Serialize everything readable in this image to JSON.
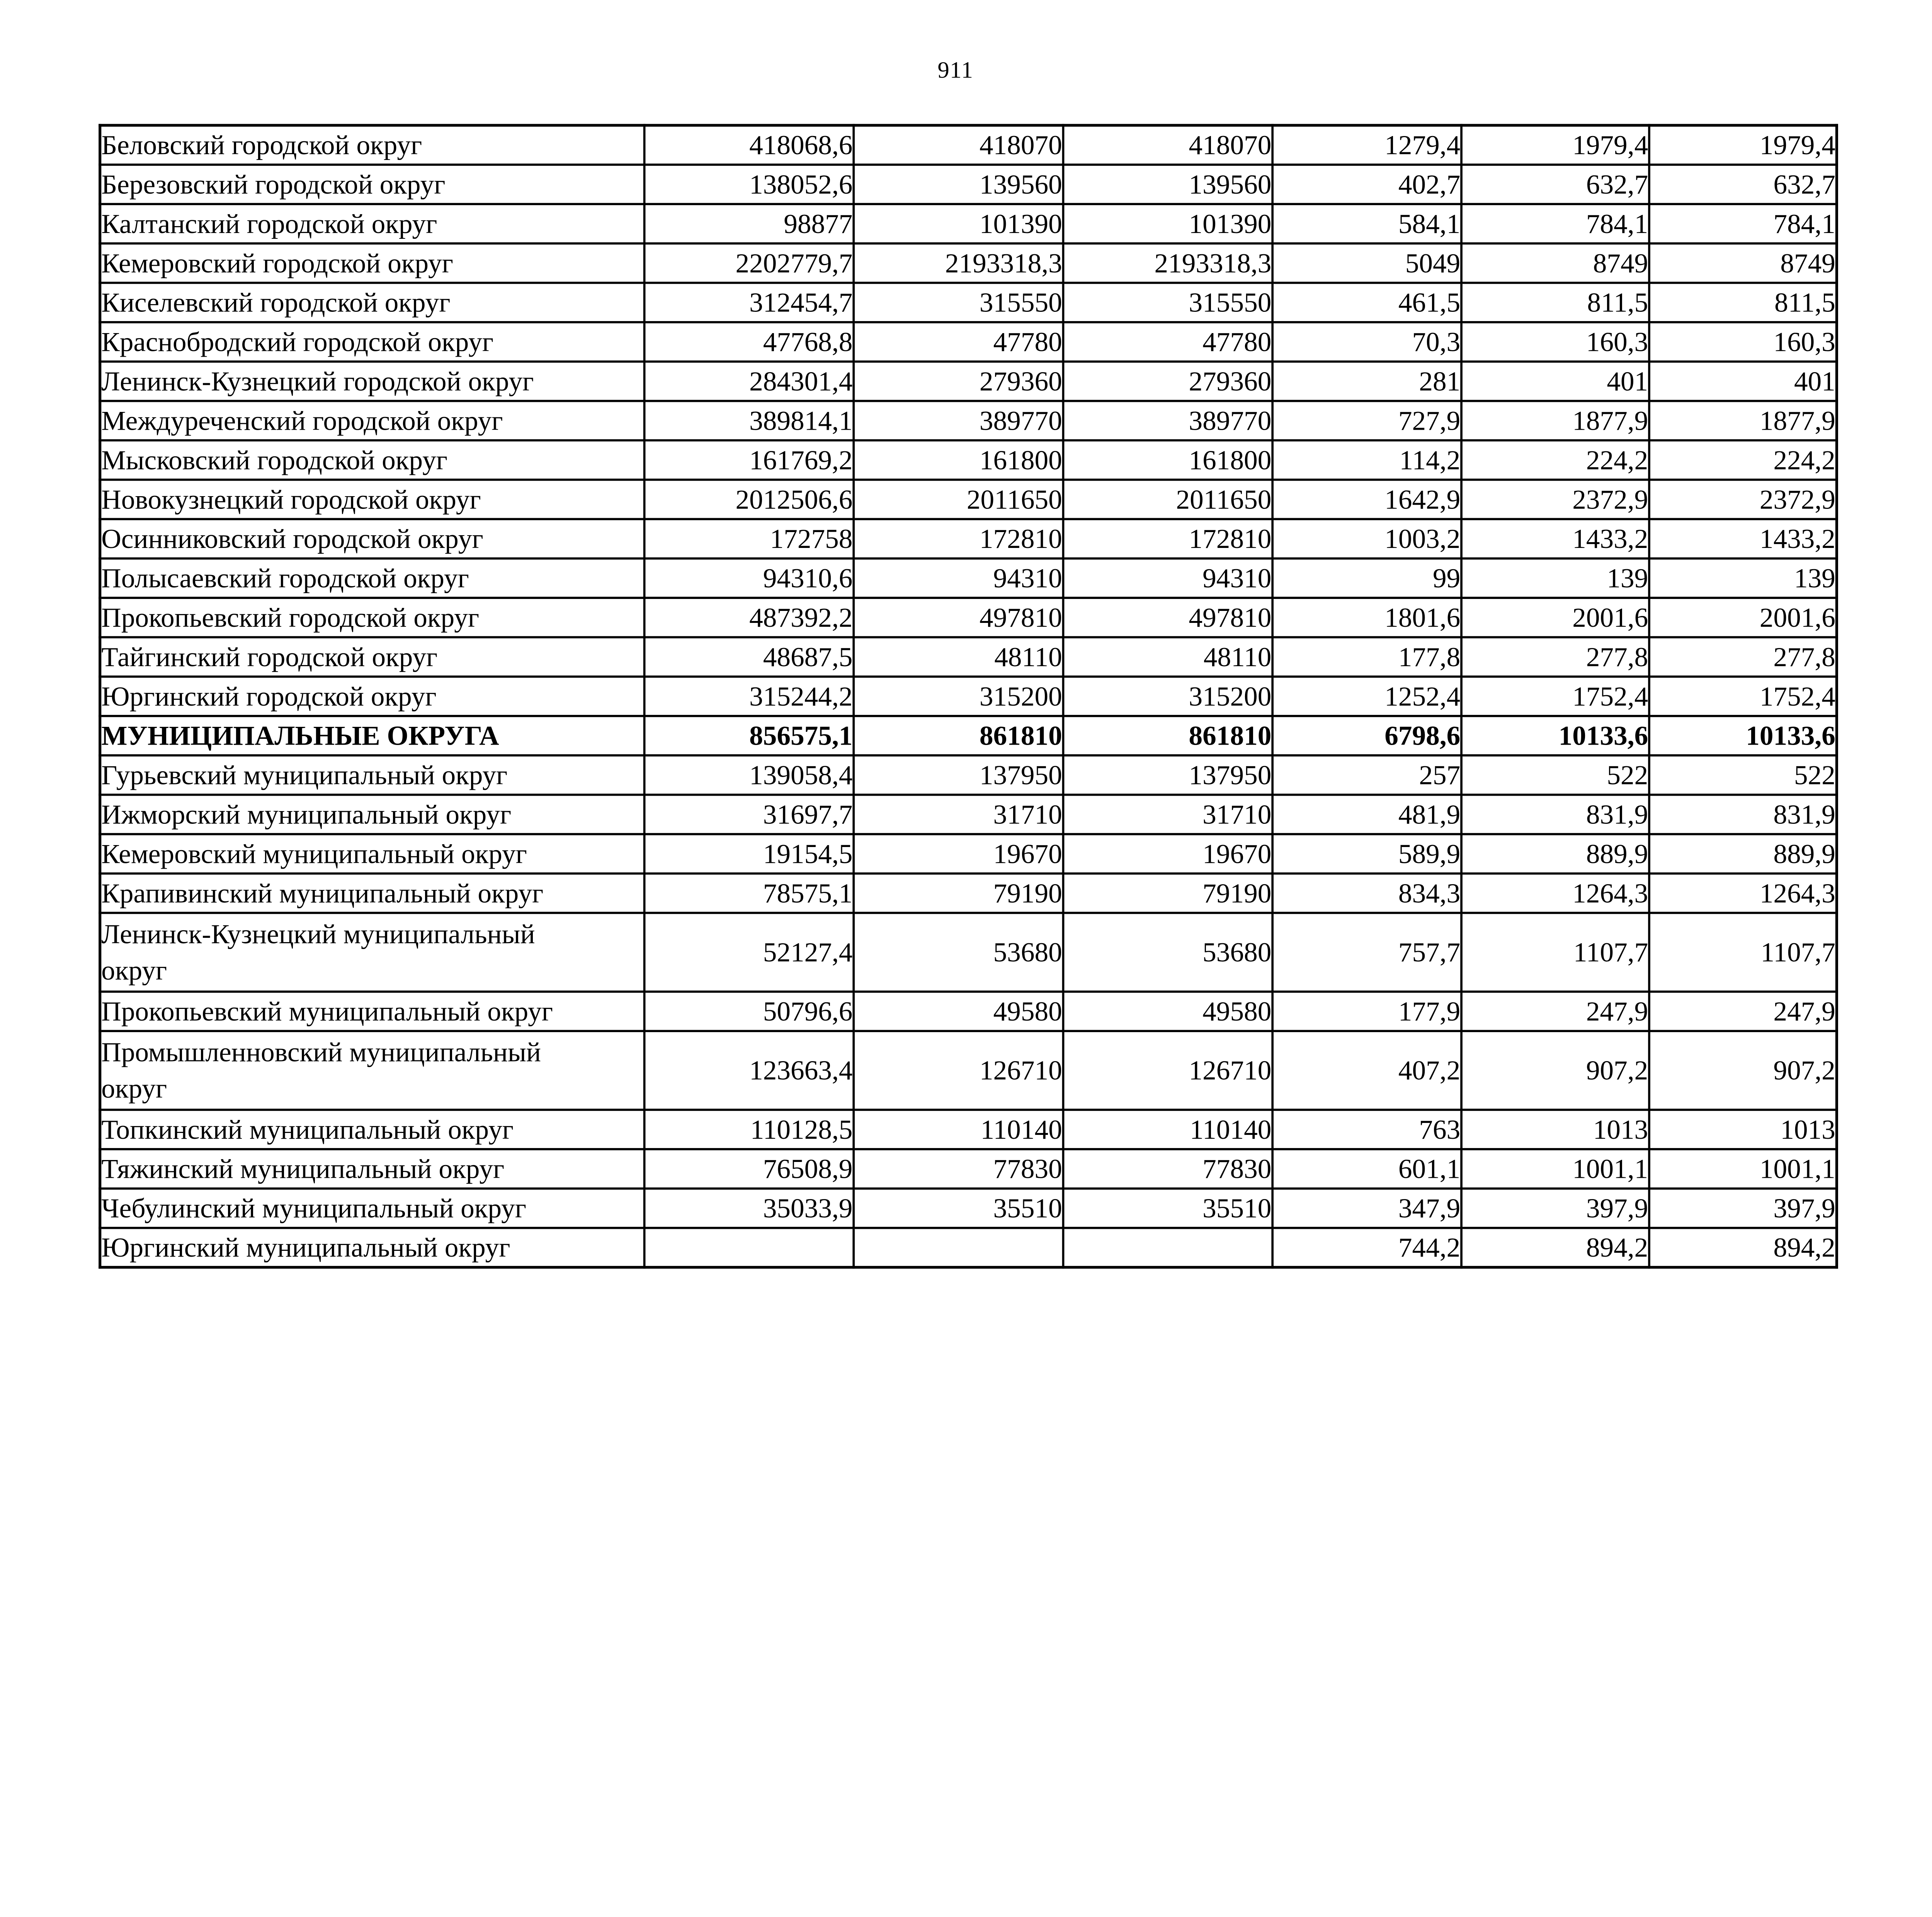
{
  "page": {
    "number": "911"
  },
  "table": {
    "rows": [
      {
        "name": "Беловский городской округ",
        "values": [
          "418068,6",
          "418070",
          "418070",
          "1279,4",
          "1979,4",
          "1979,4"
        ],
        "bold": false,
        "double": false
      },
      {
        "name": "Березовский городской округ",
        "values": [
          "138052,6",
          "139560",
          "139560",
          "402,7",
          "632,7",
          "632,7"
        ],
        "bold": false,
        "double": false
      },
      {
        "name": "Калтанский городской округ",
        "values": [
          "98877",
          "101390",
          "101390",
          "584,1",
          "784,1",
          "784,1"
        ],
        "bold": false,
        "double": false
      },
      {
        "name": "Кемеровский городской округ",
        "values": [
          "2202779,7",
          "2193318,3",
          "2193318,3",
          "5049",
          "8749",
          "8749"
        ],
        "bold": false,
        "double": false
      },
      {
        "name": "Киселевский городской округ",
        "values": [
          "312454,7",
          "315550",
          "315550",
          "461,5",
          "811,5",
          "811,5"
        ],
        "bold": false,
        "double": false
      },
      {
        "name": "Краснобродский городской округ",
        "values": [
          "47768,8",
          "47780",
          "47780",
          "70,3",
          "160,3",
          "160,3"
        ],
        "bold": false,
        "double": false
      },
      {
        "name": "Ленинск-Кузнецкий городской округ",
        "values": [
          "284301,4",
          "279360",
          "279360",
          "281",
          "401",
          "401"
        ],
        "bold": false,
        "double": false
      },
      {
        "name": "Междуреченский городской округ",
        "values": [
          "389814,1",
          "389770",
          "389770",
          "727,9",
          "1877,9",
          "1877,9"
        ],
        "bold": false,
        "double": false
      },
      {
        "name": "Мысковский городской округ",
        "values": [
          "161769,2",
          "161800",
          "161800",
          "114,2",
          "224,2",
          "224,2"
        ],
        "bold": false,
        "double": false
      },
      {
        "name": "Новокузнецкий городской округ",
        "values": [
          "2012506,6",
          "2011650",
          "2011650",
          "1642,9",
          "2372,9",
          "2372,9"
        ],
        "bold": false,
        "double": false
      },
      {
        "name": "Осинниковский городской округ",
        "values": [
          "172758",
          "172810",
          "172810",
          "1003,2",
          "1433,2",
          "1433,2"
        ],
        "bold": false,
        "double": false
      },
      {
        "name": "Полысаевский городской округ",
        "values": [
          "94310,6",
          "94310",
          "94310",
          "99",
          "139",
          "139"
        ],
        "bold": false,
        "double": false
      },
      {
        "name": "Прокопьевский городской округ",
        "values": [
          "487392,2",
          "497810",
          "497810",
          "1801,6",
          "2001,6",
          "2001,6"
        ],
        "bold": false,
        "double": false
      },
      {
        "name": "Тайгинский городской округ",
        "values": [
          "48687,5",
          "48110",
          "48110",
          "177,8",
          "277,8",
          "277,8"
        ],
        "bold": false,
        "double": false
      },
      {
        "name": "Юргинский городской округ",
        "values": [
          "315244,2",
          "315200",
          "315200",
          "1252,4",
          "1752,4",
          "1752,4"
        ],
        "bold": false,
        "double": false
      },
      {
        "name": "МУНИЦИПАЛЬНЫЕ ОКРУГА",
        "values": [
          "856575,1",
          "861810",
          "861810",
          "6798,6",
          "10133,6",
          "10133,6"
        ],
        "bold": true,
        "double": false
      },
      {
        "name": "Гурьевский муниципальный округ",
        "values": [
          "139058,4",
          "137950",
          "137950",
          "257",
          "522",
          "522"
        ],
        "bold": false,
        "double": false
      },
      {
        "name": "Ижморский муниципальный округ",
        "values": [
          "31697,7",
          "31710",
          "31710",
          "481,9",
          "831,9",
          "831,9"
        ],
        "bold": false,
        "double": false
      },
      {
        "name": "Кемеровский муниципальный округ",
        "values": [
          "19154,5",
          "19670",
          "19670",
          "589,9",
          "889,9",
          "889,9"
        ],
        "bold": false,
        "double": false
      },
      {
        "name": "Крапивинский муниципальный округ",
        "values": [
          "78575,1",
          "79190",
          "79190",
          "834,3",
          "1264,3",
          "1264,3"
        ],
        "bold": false,
        "double": false
      },
      {
        "name": "Ленинск-Кузнецкий муниципальный округ",
        "values": [
          "52127,4",
          "53680",
          "53680",
          "757,7",
          "1107,7",
          "1107,7"
        ],
        "bold": false,
        "double": true
      },
      {
        "name": "Прокопьевский муниципальный округ",
        "values": [
          "50796,6",
          "49580",
          "49580",
          "177,9",
          "247,9",
          "247,9"
        ],
        "bold": false,
        "double": false
      },
      {
        "name": "Промышленновский муниципальный округ",
        "values": [
          "123663,4",
          "126710",
          "126710",
          "407,2",
          "907,2",
          "907,2"
        ],
        "bold": false,
        "double": true
      },
      {
        "name": "Топкинский муниципальный округ",
        "values": [
          "110128,5",
          "110140",
          "110140",
          "763",
          "1013",
          "1013"
        ],
        "bold": false,
        "double": false
      },
      {
        "name": "Тяжинский муниципальный округ",
        "values": [
          "76508,9",
          "77830",
          "77830",
          "601,1",
          "1001,1",
          "1001,1"
        ],
        "bold": false,
        "double": false
      },
      {
        "name": "Чебулинский муниципальный округ",
        "values": [
          "35033,9",
          "35510",
          "35510",
          "347,9",
          "397,9",
          "397,9"
        ],
        "bold": false,
        "double": false
      },
      {
        "name": "Юргинский муниципальный округ",
        "values": [
          "",
          "",
          "",
          "744,2",
          "894,2",
          "894,2"
        ],
        "bold": false,
        "double": false
      }
    ]
  }
}
